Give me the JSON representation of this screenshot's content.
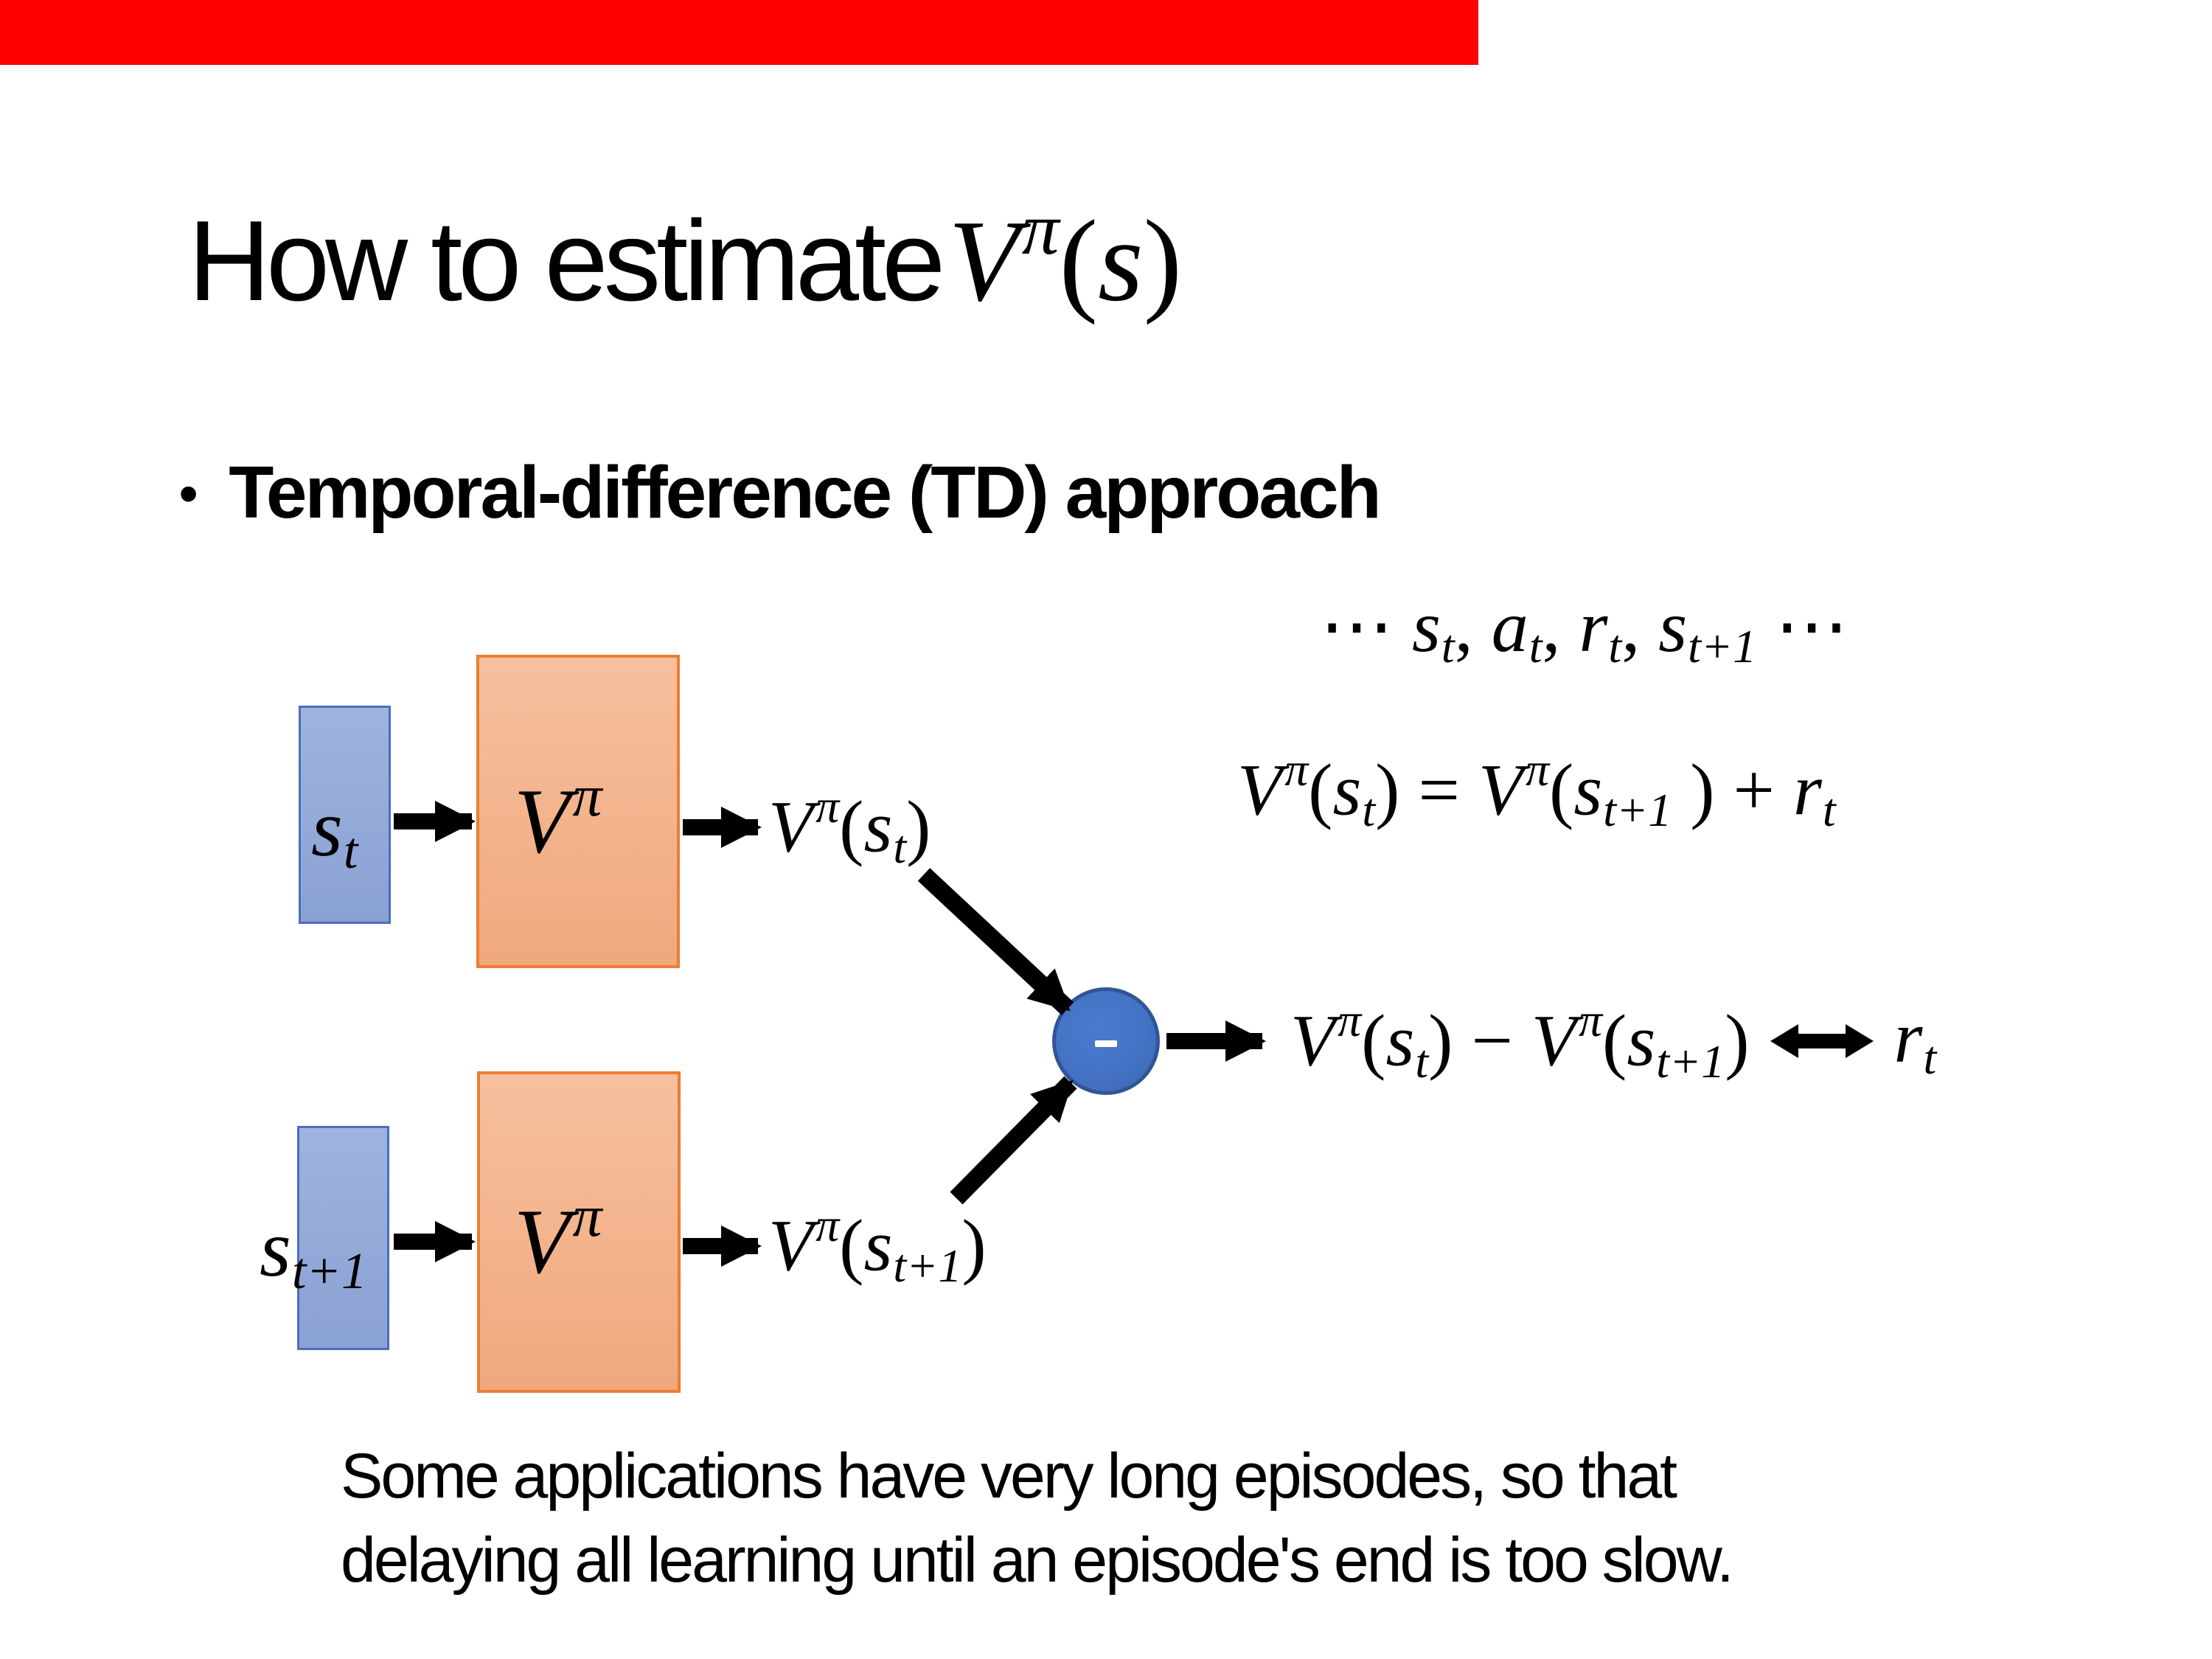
{
  "slide": {
    "decor": {
      "top_bar_color": "#fe0000",
      "state_box_fill": "#8fa6d6",
      "state_box_border": "#4a6dbd",
      "value_box_fill": "#f3b48e",
      "value_box_border": "#ec7d33",
      "minus_node_fill": "#4472c4",
      "minus_node_border": "#2f5597",
      "arrow_color": "#000000"
    },
    "title": {
      "prefix": "How to estimate",
      "math": [
        {
          "v": "V",
          "s": "i"
        },
        {
          "v": "π",
          "s": "sup"
        },
        {
          "v": "(",
          "s": "r"
        },
        {
          "v": "s",
          "s": "i"
        },
        {
          "v": ")",
          "s": "r"
        }
      ]
    },
    "bullet": {
      "marker": "•",
      "text": "Temporal-difference (TD) approach"
    },
    "trajectory_formula": [
      {
        "v": "⋯ ",
        "s": "r"
      },
      {
        "v": "s",
        "s": "i"
      },
      {
        "v": "t",
        "s": "sub"
      },
      {
        "v": ", ",
        "s": "r"
      },
      {
        "v": "a",
        "s": "i"
      },
      {
        "v": "t",
        "s": "sub"
      },
      {
        "v": ", ",
        "s": "r"
      },
      {
        "v": "r",
        "s": "i"
      },
      {
        "v": "t",
        "s": "sub"
      },
      {
        "v": ", ",
        "s": "r"
      },
      {
        "v": "s",
        "s": "i"
      },
      {
        "v": "t+1",
        "s": "sub"
      },
      {
        "v": " ⋯",
        "s": "r"
      }
    ],
    "td_equation": [
      {
        "v": "V",
        "s": "i"
      },
      {
        "v": "π",
        "s": "sup"
      },
      {
        "v": "(",
        "s": "r"
      },
      {
        "v": "s",
        "s": "i"
      },
      {
        "v": "t",
        "s": "sub"
      },
      {
        "v": ") = ",
        "s": "r"
      },
      {
        "v": "V",
        "s": "i"
      },
      {
        "v": "π",
        "s": "sup"
      },
      {
        "v": "(",
        "s": "r"
      },
      {
        "v": "s",
        "s": "i"
      },
      {
        "v": "t+1",
        "s": "sub"
      },
      {
        "v": " ) + ",
        "s": "r"
      },
      {
        "v": "r",
        "s": "i"
      },
      {
        "v": "t",
        "s": "sub"
      }
    ],
    "diagram": {
      "input_1": [
        {
          "v": "s",
          "s": "i"
        },
        {
          "v": "t",
          "s": "sub"
        }
      ],
      "input_2": [
        {
          "v": "s",
          "s": "i"
        },
        {
          "v": "t+1",
          "s": "sub"
        }
      ],
      "value_fn_1": [
        {
          "v": "V",
          "s": "i"
        },
        {
          "v": "π",
          "s": "sup"
        }
      ],
      "value_fn_2": [
        {
          "v": "V",
          "s": "i"
        },
        {
          "v": "π",
          "s": "sup"
        }
      ],
      "output_1": [
        {
          "v": "V",
          "s": "i"
        },
        {
          "v": "π",
          "s": "sup"
        },
        {
          "v": "(",
          "s": "r"
        },
        {
          "v": "s",
          "s": "i"
        },
        {
          "v": "t",
          "s": "sub"
        },
        {
          "v": ")",
          "s": "r"
        }
      ],
      "output_2": [
        {
          "v": "V",
          "s": "i"
        },
        {
          "v": "π",
          "s": "sup"
        },
        {
          "v": "(",
          "s": "r"
        },
        {
          "v": "s",
          "s": "i"
        },
        {
          "v": "t+1",
          "s": "sub"
        },
        {
          "v": ")",
          "s": "r"
        }
      ],
      "minus_symbol": "-",
      "result_difference": [
        {
          "v": "V",
          "s": "i"
        },
        {
          "v": "π",
          "s": "sup"
        },
        {
          "v": "(",
          "s": "r"
        },
        {
          "v": "s",
          "s": "i"
        },
        {
          "v": "t",
          "s": "sub"
        },
        {
          "v": ") − ",
          "s": "r"
        },
        {
          "v": "V",
          "s": "i"
        },
        {
          "v": "π",
          "s": "sup"
        },
        {
          "v": "(",
          "s": "r"
        },
        {
          "v": "s",
          "s": "i"
        },
        {
          "v": "t+1",
          "s": "sub"
        },
        {
          "v": ")",
          "s": "r"
        }
      ],
      "result_reward": [
        {
          "v": "r",
          "s": "i"
        },
        {
          "v": "t",
          "s": "sub"
        }
      ]
    },
    "caption": {
      "lines": [
        "Some applications have very long episodes, so that",
        "delaying all learning until an episode's end is too slow."
      ]
    }
  }
}
